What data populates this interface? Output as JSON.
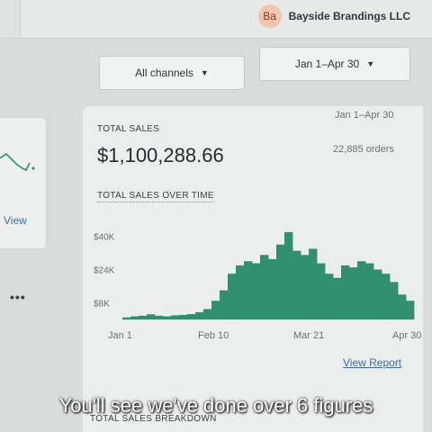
{
  "header": {
    "avatar_initials": "Ba",
    "store_name": "Bayside Brandings LLC"
  },
  "left_panel": {
    "view_link": "View",
    "more_label": "•••"
  },
  "filters": {
    "channel": {
      "label": "All channels",
      "icon": "chevron-down-icon"
    },
    "date": {
      "label": "Jan 1–Apr 30",
      "icon": "chevron-down-icon"
    }
  },
  "summary": {
    "total_sales_label": "TOTAL SALES",
    "date_range": "Jan 1–Apr 30",
    "amount": "$1,100,288.66",
    "orders": "22,885 orders"
  },
  "sales_over_time": {
    "title": "TOTAL SALES OVER TIME",
    "view_report": "View Report"
  },
  "breakdown_title": "TOTAL SALES BREAKDOWN",
  "caption": "You'll see we've done over 6 figures",
  "colors": {
    "series": "#2f8f6f",
    "link": "#3f6ca8"
  },
  "chart_data": {
    "type": "area",
    "title": "TOTAL SALES OVER TIME",
    "xlabel": "",
    "ylabel": "",
    "x_ticks": [
      "Jan 1",
      "Feb 10",
      "Mar 21",
      "Apr 30"
    ],
    "y_ticks": [
      "$8K",
      "$24K",
      "$40K"
    ],
    "y_tick_values": [
      8000,
      24000,
      40000
    ],
    "ylim": [
      0,
      48000
    ],
    "x": [
      "Jan 1",
      "Jan 8",
      "Jan 15",
      "Jan 22",
      "Jan 29",
      "Feb 5",
      "Feb 12",
      "Feb 19",
      "Feb 26",
      "Mar 5",
      "Mar 9",
      "Mar 12",
      "Mar 15",
      "Mar 17",
      "Mar 19",
      "Mar 21",
      "Mar 23",
      "Mar 25",
      "Mar 27",
      "Mar 29",
      "Mar 31",
      "Apr 2",
      "Apr 4",
      "Apr 6",
      "Apr 8",
      "Apr 10",
      "Apr 12",
      "Apr 14",
      "Apr 16",
      "Apr 18",
      "Apr 20",
      "Apr 22",
      "Apr 24",
      "Apr 26",
      "Apr 28",
      "Apr 30"
    ],
    "values": [
      1000,
      1500,
      1800,
      2500,
      1800,
      1500,
      2000,
      2200,
      2600,
      3500,
      5000,
      9000,
      14000,
      22000,
      26000,
      28000,
      27000,
      31000,
      29000,
      36000,
      42000,
      33000,
      31000,
      34000,
      27000,
      22000,
      20000,
      26000,
      25000,
      28000,
      27000,
      24000,
      22000,
      18000,
      12000,
      9000
    ],
    "grid": false,
    "legend": "none"
  }
}
